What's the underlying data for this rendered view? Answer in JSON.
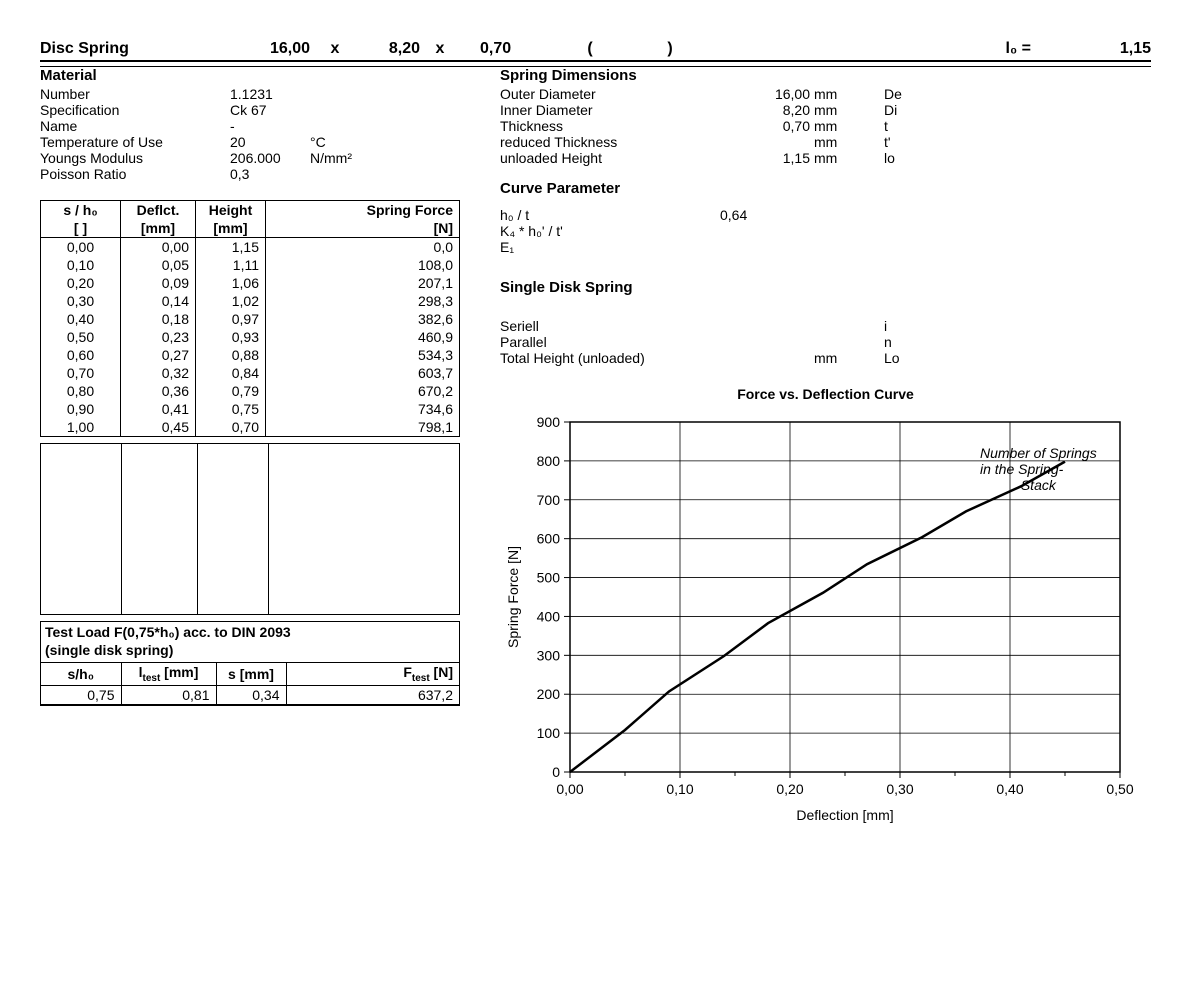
{
  "header": {
    "title": "Disc Spring",
    "dim1": "16,00",
    "x1": "x",
    "dim2": "8,20",
    "x2": "x",
    "dim3": "0,70",
    "paren_open": "(",
    "paren_close": ")",
    "l0_label": "l₀ =",
    "l0_value": "1,15"
  },
  "material": {
    "heading": "Material",
    "number_k": "Number",
    "number_v": "1.1231",
    "spec_k": "Specification",
    "spec_v": "Ck 67",
    "name_k": "Name",
    "name_v": "-",
    "temp_k": "Temperature of Use",
    "temp_v": "20",
    "temp_u": "°C",
    "ym_k": "Youngs Modulus",
    "ym_v": "206.000",
    "ym_u": "N/mm²",
    "pr_k": "Poisson Ratio",
    "pr_v": "0,3"
  },
  "springdims": {
    "heading": "Spring Dimensions",
    "od_k": "Outer Diameter",
    "od_v": "16,00",
    "od_u": "mm",
    "od_s": "De",
    "id_k": "Inner Diameter",
    "id_v": "8,20",
    "id_u": "mm",
    "id_s": "Di",
    "t_k": "Thickness",
    "t_v": "0,70",
    "t_u": "mm",
    "t_s": "t",
    "rt_k": "reduced Thickness",
    "rt_v": "",
    "rt_u": "mm",
    "rt_s": "t'",
    "uh_k": "unloaded Height",
    "uh_v": "1,15",
    "uh_u": "mm",
    "uh_s": "lo"
  },
  "curveparam": {
    "heading": "Curve Parameter",
    "p1_k": "h₀ / t",
    "p1_v": "0,64",
    "p2_k": "K₄ * h₀' / t'",
    "p3_k": "E₁"
  },
  "singledisk": {
    "heading": "Single Disk Spring",
    "ser_k": "Seriell",
    "ser_s": "i",
    "par_k": "Parallel",
    "par_s": "n",
    "th_k": "Total Height (unloaded)",
    "th_u": "mm",
    "th_s": "Lo",
    "note1": "Number of Springs",
    "note2": "in the Spring-",
    "note3": "Stack"
  },
  "table": {
    "h1": "s / h₀",
    "h2": "Deflct.",
    "h3": "Height",
    "h4": "Spring Force",
    "u1": "[ ]",
    "u2": "[mm]",
    "u3": "[mm]",
    "u4": "[N]",
    "rows": [
      [
        "0,00",
        "0,00",
        "1,15",
        "0,0"
      ],
      [
        "0,10",
        "0,05",
        "1,11",
        "108,0"
      ],
      [
        "0,20",
        "0,09",
        "1,06",
        "207,1"
      ],
      [
        "0,30",
        "0,14",
        "1,02",
        "298,3"
      ],
      [
        "0,40",
        "0,18",
        "0,97",
        "382,6"
      ],
      [
        "0,50",
        "0,23",
        "0,93",
        "460,9"
      ],
      [
        "0,60",
        "0,27",
        "0,88",
        "534,3"
      ],
      [
        "0,70",
        "0,32",
        "0,84",
        "603,7"
      ],
      [
        "0,80",
        "0,36",
        "0,79",
        "670,2"
      ],
      [
        "0,90",
        "0,41",
        "0,75",
        "734,6"
      ],
      [
        "1,00",
        "0,45",
        "0,70",
        "798,1"
      ]
    ]
  },
  "testload": {
    "title": "Test Load F(0,75*h₀) acc. to DIN 2093",
    "subtitle": "(single disk spring)",
    "h1": "s/h₀",
    "h2": "l",
    "h2s": "test",
    "h2u": " [mm]",
    "h3": "s [mm]",
    "h4": "F",
    "h4s": "test",
    "h4u": " [N]",
    "row": [
      "0,75",
      "0,81",
      "0,34",
      "637,2"
    ]
  },
  "chart": {
    "title": "Force vs. Deflection Curve",
    "ylabel": "Spring Force [N]",
    "xlabel": "Deflection [mm]",
    "xlim": [
      0,
      0.5
    ],
    "ylim": [
      0,
      900
    ],
    "xticks": [
      "0,00",
      "0,10",
      "0,20",
      "0,30",
      "0,40",
      "0,50"
    ],
    "yticks": [
      "0",
      "100",
      "200",
      "300",
      "400",
      "500",
      "600",
      "700",
      "800",
      "900"
    ],
    "line_color": "#000000",
    "line_width": 2.5,
    "background": "#ffffff",
    "grid_color": "#000000",
    "points": [
      [
        0.0,
        0.0
      ],
      [
        0.05,
        108.0
      ],
      [
        0.09,
        207.1
      ],
      [
        0.14,
        298.3
      ],
      [
        0.18,
        382.6
      ],
      [
        0.23,
        460.9
      ],
      [
        0.27,
        534.3
      ],
      [
        0.32,
        603.7
      ],
      [
        0.36,
        670.2
      ],
      [
        0.41,
        734.6
      ],
      [
        0.45,
        798.1
      ]
    ]
  }
}
